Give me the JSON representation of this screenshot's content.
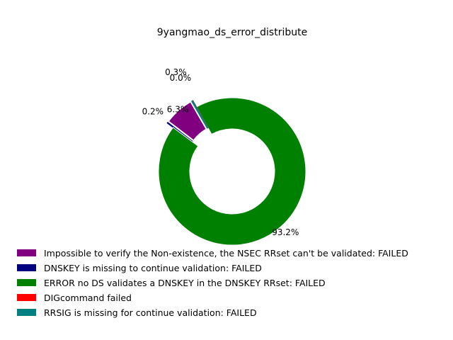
{
  "chart_data": {
    "type": "pie",
    "style": "donut",
    "title": "9yangmao_ds_error_distribute",
    "legend_position": "bottom",
    "slices": [
      {
        "label": "Impossible to verify the Non-existence, the NSEC RRset can't be validated: FAILED",
        "value": 6.3,
        "pct_label": "6.3%",
        "color": "#800080"
      },
      {
        "label": "DNSKEY is missing to continue validation: FAILED",
        "value": 0.2,
        "pct_label": "0.2%",
        "color": "#000080"
      },
      {
        "label": "ERROR no DS validates a DNSKEY in the DNSKEY RRset: FAILED",
        "value": 93.2,
        "pct_label": "93.2%",
        "color": "#008000"
      },
      {
        "label": "DIGcommand failed",
        "value": 0.0,
        "pct_label": "0.0%",
        "color": "#ff0000"
      },
      {
        "label": "RRSIG is missing for continue validation: FAILED",
        "value": 0.3,
        "pct_label": "0.3%",
        "color": "#008080"
      }
    ]
  }
}
